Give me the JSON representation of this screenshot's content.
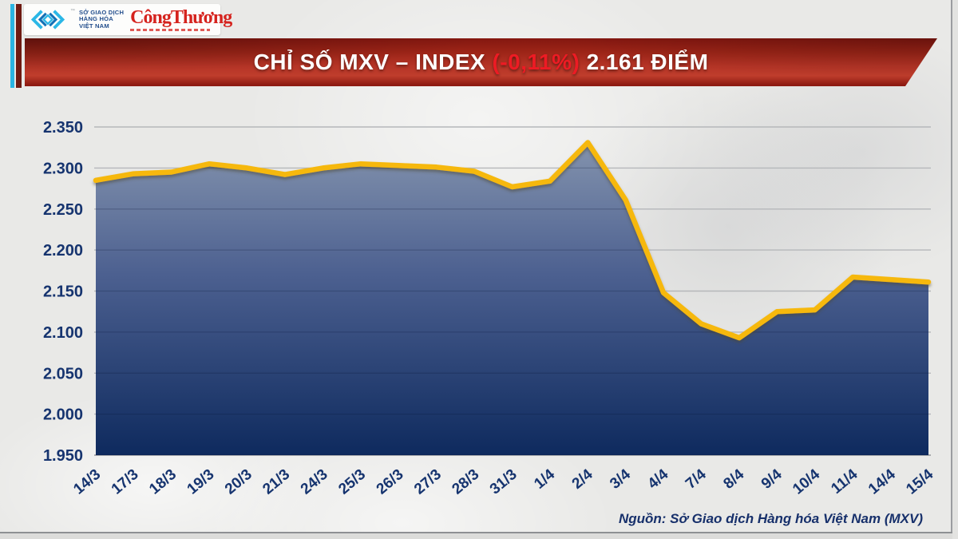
{
  "header": {
    "logo": {
      "org_lines": [
        "SỞ GIAO DỊCH",
        "HÀNG HÓA",
        "VIỆT NAM"
      ],
      "newspaper": "CôngThương",
      "trademark": "™",
      "mark_color_cyan": "#2bb7e6",
      "mark_color_blue": "#1472b7"
    },
    "banner": {
      "title_prefix": "CHỈ SỐ MXV – INDEX ",
      "change": "(-0,11%)",
      "title_suffix": " 2.161 ĐIỂM",
      "change_color": "#ed1b24"
    }
  },
  "chart_data": {
    "type": "area",
    "title": "CHỈ SỐ MXV – INDEX",
    "x": [
      "14/3",
      "17/3",
      "18/3",
      "19/3",
      "20/3",
      "21/3",
      "24/3",
      "25/3",
      "26/3",
      "27/3",
      "28/3",
      "31/3",
      "1/4",
      "2/4",
      "3/4",
      "4/4",
      "7/4",
      "8/4",
      "9/4",
      "10/4",
      "11/4",
      "14/4",
      "15/4"
    ],
    "values": [
      2285,
      2293,
      2295,
      2305,
      2300,
      2292,
      2300,
      2305,
      2303,
      2301,
      2296,
      2277,
      2284,
      2331,
      2261,
      2148,
      2110,
      2093,
      2125,
      2127,
      2167,
      2164,
      2161
    ],
    "last_value_label": "2.161",
    "change_label": "(-0,11%)",
    "ylim": [
      1950,
      2350
    ],
    "y_ticks": [
      1950,
      2000,
      2050,
      2100,
      2150,
      2200,
      2250,
      2300,
      2350
    ],
    "y_tick_labels": [
      "1.950",
      "2.000",
      "2.050",
      "2.100",
      "2.150",
      "2.200",
      "2.250",
      "2.300",
      "2.350"
    ],
    "grid": true,
    "legend": "none",
    "line_color": "#f6b80a",
    "fill_top": "#8a99b1",
    "fill_mid": "#4c6090",
    "fill_bottom": "#0e2a5e",
    "grid_color": "#b5b7ba",
    "axis_color": "#9fa1a4",
    "label_color": "#16346f"
  },
  "footer": {
    "source": "Nguồn: Sở Giao dịch Hàng hóa Việt Nam (MXV)"
  }
}
